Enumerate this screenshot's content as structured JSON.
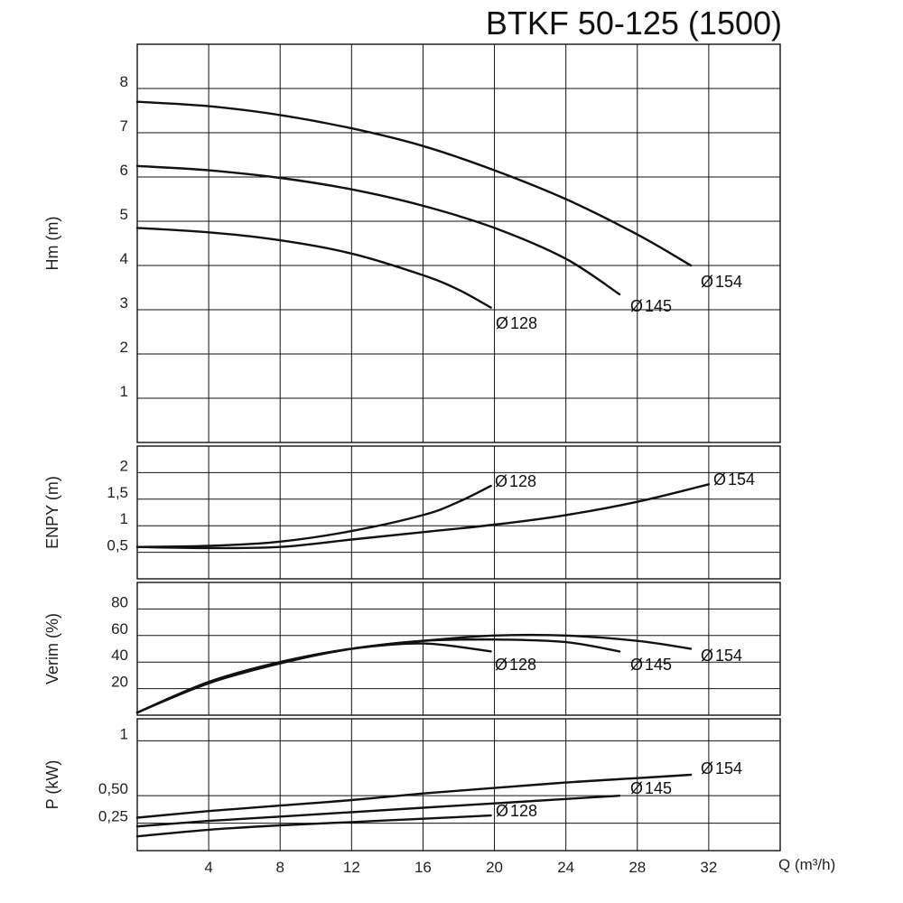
{
  "title": "BTKF 50-125 (1500)",
  "x_axis_label": "Q (m³/h)",
  "colors": {
    "line": "#111111",
    "grid": "#111111",
    "background": "#ffffff"
  },
  "chart_data": [
    {
      "id": "head",
      "type": "line",
      "ylabel": "Hm (m)",
      "xlim": [
        0,
        36
      ],
      "ylim": [
        0,
        9
      ],
      "y_ticks": [
        1,
        2,
        3,
        4,
        5,
        6,
        7,
        8
      ],
      "y_tick_labels": [
        "1",
        "2",
        "3",
        "4",
        "5",
        "6",
        "7",
        "8"
      ],
      "series": [
        {
          "name": "Ø154",
          "label_glyph": "Ø",
          "label_text": "154",
          "points": [
            [
              0,
              7.7
            ],
            [
              4,
              7.6
            ],
            [
              8,
              7.4
            ],
            [
              12,
              7.1
            ],
            [
              16,
              6.7
            ],
            [
              20,
              6.15
            ],
            [
              24,
              5.5
            ],
            [
              28,
              4.7
            ],
            [
              31,
              4.0
            ]
          ]
        },
        {
          "name": "Ø145",
          "label_glyph": "Ø",
          "label_text": "145",
          "points": [
            [
              0,
              6.25
            ],
            [
              4,
              6.15
            ],
            [
              8,
              5.98
            ],
            [
              12,
              5.72
            ],
            [
              16,
              5.35
            ],
            [
              20,
              4.85
            ],
            [
              24,
              4.15
            ],
            [
              27,
              3.35
            ]
          ]
        },
        {
          "name": "Ø128",
          "label_glyph": "Ø",
          "label_text": "128",
          "points": [
            [
              0,
              4.85
            ],
            [
              4,
              4.75
            ],
            [
              8,
              4.57
            ],
            [
              12,
              4.27
            ],
            [
              16,
              3.78
            ],
            [
              18,
              3.45
            ],
            [
              19.8,
              3.05
            ]
          ]
        }
      ]
    },
    {
      "id": "npsh",
      "type": "line",
      "ylabel": "ENPY (m)",
      "xlim": [
        0,
        36
      ],
      "ylim": [
        0,
        2.5
      ],
      "y_ticks": [
        0.5,
        1,
        1.5,
        2
      ],
      "y_tick_labels": [
        "0,5",
        "1",
        "1,5",
        "2"
      ],
      "series": [
        {
          "name": "Ø128",
          "label_glyph": "Ø",
          "label_text": "128",
          "points": [
            [
              0,
              0.6
            ],
            [
              4,
              0.62
            ],
            [
              8,
              0.7
            ],
            [
              12,
              0.9
            ],
            [
              16,
              1.2
            ],
            [
              18,
              1.45
            ],
            [
              19.8,
              1.75
            ]
          ]
        },
        {
          "name": "Ø154",
          "label_glyph": "Ø",
          "label_text": "154",
          "points": [
            [
              0,
              0.6
            ],
            [
              4,
              0.58
            ],
            [
              8,
              0.6
            ],
            [
              12,
              0.74
            ],
            [
              16,
              0.88
            ],
            [
              20,
              1.02
            ],
            [
              24,
              1.2
            ],
            [
              28,
              1.45
            ],
            [
              32,
              1.78
            ]
          ]
        }
      ]
    },
    {
      "id": "efficiency",
      "type": "line",
      "ylabel": "Verim (%)",
      "xlim": [
        0,
        36
      ],
      "ylim": [
        0,
        100
      ],
      "y_ticks": [
        20,
        40,
        60,
        80
      ],
      "y_tick_labels": [
        "20",
        "40",
        "60",
        "80"
      ],
      "series": [
        {
          "name": "Ø128",
          "label_glyph": "Ø",
          "label_text": "128",
          "points": [
            [
              0,
              2
            ],
            [
              4,
              25
            ],
            [
              8,
              40
            ],
            [
              12,
              50
            ],
            [
              16,
              54
            ],
            [
              19.8,
              48
            ]
          ]
        },
        {
          "name": "Ø145",
          "label_glyph": "Ø",
          "label_text": "145",
          "points": [
            [
              0,
              2
            ],
            [
              4,
              25
            ],
            [
              8,
              40
            ],
            [
              12,
              50
            ],
            [
              16,
              56
            ],
            [
              20,
              57
            ],
            [
              24,
              55
            ],
            [
              27,
              48
            ]
          ]
        },
        {
          "name": "Ø154",
          "label_glyph": "Ø",
          "label_text": "154",
          "points": [
            [
              0,
              2
            ],
            [
              4,
              24
            ],
            [
              8,
              39
            ],
            [
              12,
              50
            ],
            [
              16,
              56
            ],
            [
              20,
              60
            ],
            [
              24,
              60
            ],
            [
              28,
              56
            ],
            [
              31,
              50
            ]
          ]
        }
      ]
    },
    {
      "id": "power",
      "type": "line",
      "ylabel": "P (kW)",
      "xlim": [
        0,
        36
      ],
      "ylim": [
        0,
        1.2
      ],
      "y_ticks": [
        0.25,
        0.5,
        1
      ],
      "y_tick_labels": [
        "0,25",
        "0,50",
        "1"
      ],
      "x_ticks": [
        4,
        8,
        12,
        16,
        20,
        24,
        28,
        32
      ],
      "x_tick_labels": [
        "4",
        "8",
        "12",
        "16",
        "20",
        "24",
        "28",
        "32"
      ],
      "series": [
        {
          "name": "Ø154",
          "label_glyph": "Ø",
          "label_text": "154",
          "points": [
            [
              0,
              0.3
            ],
            [
              4,
              0.36
            ],
            [
              8,
              0.41
            ],
            [
              12,
              0.46
            ],
            [
              16,
              0.52
            ],
            [
              20,
              0.57
            ],
            [
              24,
              0.62
            ],
            [
              28,
              0.66
            ],
            [
              31,
              0.69
            ]
          ]
        },
        {
          "name": "Ø145",
          "label_glyph": "Ø",
          "label_text": "145",
          "points": [
            [
              0,
              0.22
            ],
            [
              4,
              0.27
            ],
            [
              8,
              0.31
            ],
            [
              12,
              0.35
            ],
            [
              16,
              0.39
            ],
            [
              20,
              0.43
            ],
            [
              24,
              0.47
            ],
            [
              27,
              0.5
            ]
          ]
        },
        {
          "name": "Ø128",
          "label_glyph": "Ø",
          "label_text": "128",
          "points": [
            [
              0,
              0.13
            ],
            [
              4,
              0.19
            ],
            [
              8,
              0.23
            ],
            [
              12,
              0.26
            ],
            [
              16,
              0.29
            ],
            [
              19.8,
              0.32
            ]
          ]
        }
      ]
    }
  ]
}
